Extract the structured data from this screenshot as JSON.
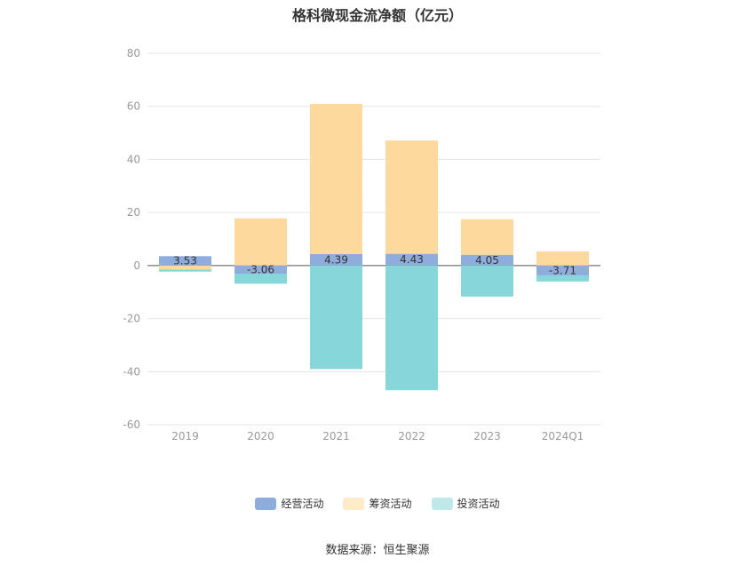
{
  "chart_data": {
    "type": "bar",
    "stacked": true,
    "title": "格科微现金流净额（亿元）",
    "categories": [
      "2019",
      "2020",
      "2021",
      "2022",
      "2023",
      "2024Q1"
    ],
    "ylim": [
      -60,
      80
    ],
    "yticks": [
      "80",
      "60",
      "40",
      "20",
      "0",
      "-20",
      "-40",
      "-60"
    ],
    "ytick_values": [
      80,
      60,
      40,
      20,
      0,
      -20,
      -40,
      -60
    ],
    "grid": true,
    "legend_position": "bottom",
    "series": [
      {
        "name": "经营活动",
        "color": "#8eacdc",
        "values": [
          3.53,
          -3.06,
          4.39,
          4.43,
          4.05,
          -3.71
        ],
        "labels": [
          "3.53",
          "-3.06",
          "4.39",
          "4.43",
          "4.05",
          "-3.71"
        ]
      },
      {
        "name": "筹资活动",
        "color": "#fed99d",
        "values": [
          -1.5,
          17.8,
          56.5,
          42.7,
          13.4,
          5.3
        ]
      },
      {
        "name": "投资活动",
        "color": "#86d6da",
        "values": [
          -0.8,
          -3.8,
          -39.0,
          -47.0,
          -11.7,
          -2.3
        ]
      }
    ]
  },
  "legend": {
    "items": [
      {
        "label": "经营活动",
        "color": "#8eacdc"
      },
      {
        "label": "筹资活动",
        "color": "#feebc7"
      },
      {
        "label": "投资活动",
        "color": "#bfe8ea"
      }
    ]
  },
  "source": "数据来源：恒生聚源"
}
